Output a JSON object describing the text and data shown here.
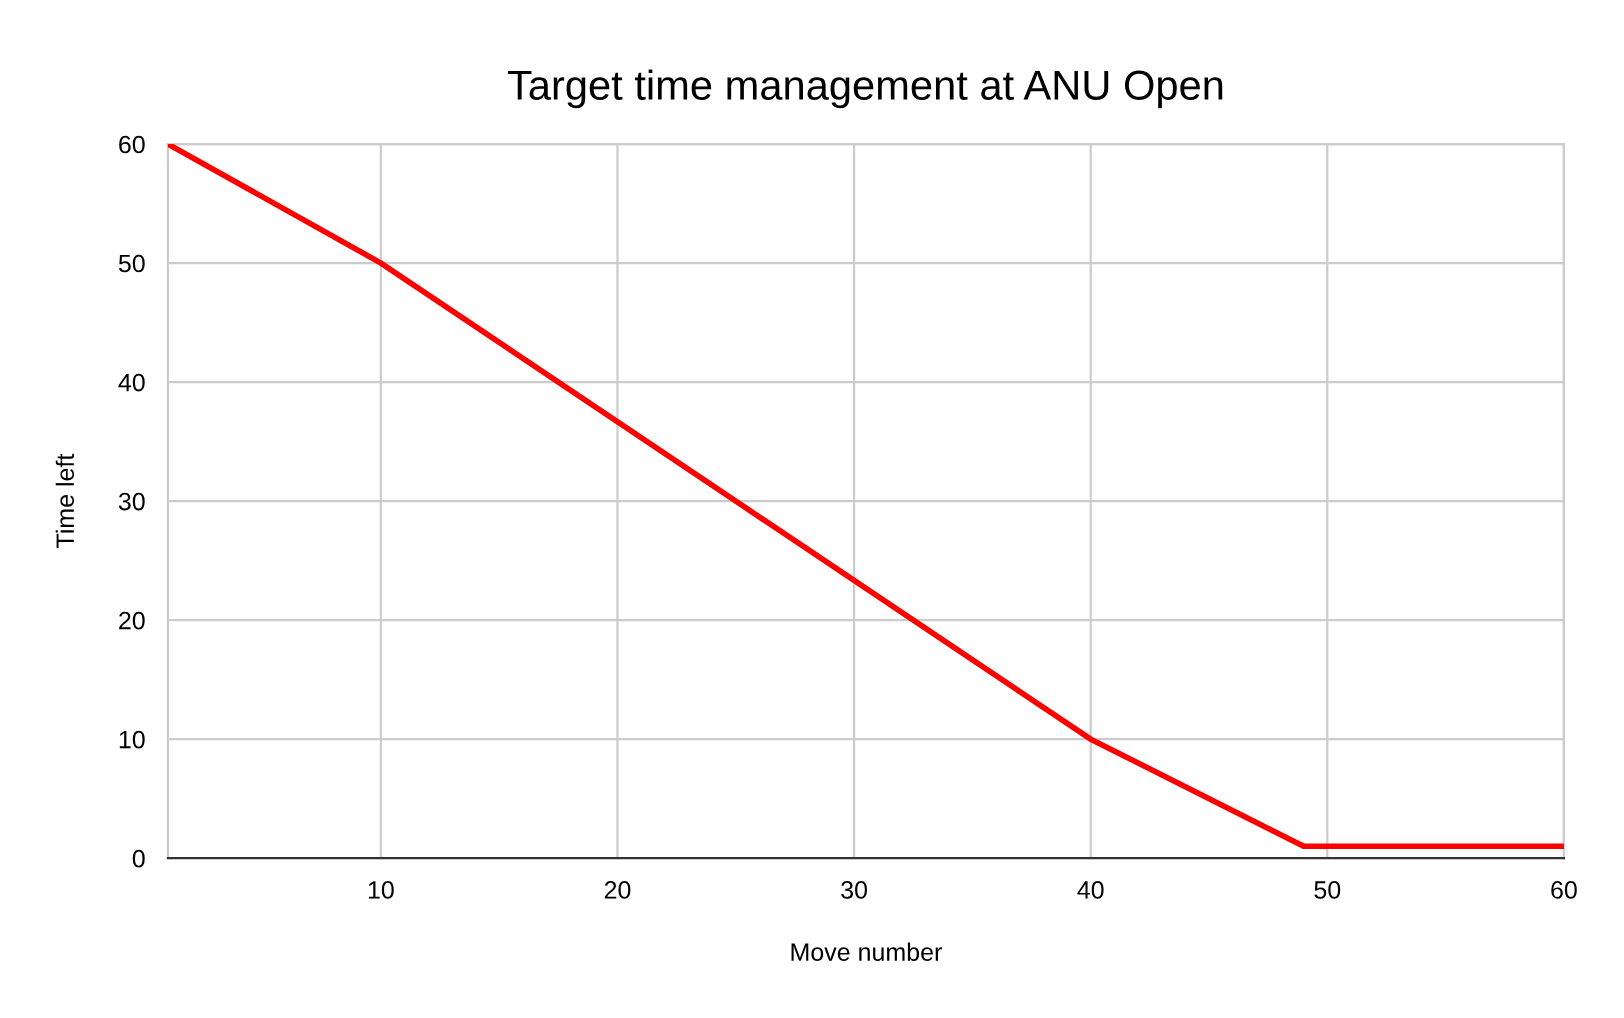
{
  "chart_data": {
    "type": "line",
    "title": "Target time management at ANU Open",
    "xlabel": "Move number",
    "ylabel": "Time left",
    "x": [
      1,
      10,
      40,
      49,
      60
    ],
    "series": [
      {
        "color": "#ff0000",
        "values": [
          60,
          50,
          10,
          1,
          1
        ]
      }
    ],
    "xlim": [
      1,
      60
    ],
    "xticks": [
      10,
      20,
      30,
      40,
      50,
      60
    ],
    "ylim": [
      0,
      60
    ],
    "yticks": [
      0,
      10,
      20,
      30,
      40,
      50,
      60
    ],
    "grid": true,
    "legend": false,
    "marker": "none",
    "line_style": "solid"
  }
}
